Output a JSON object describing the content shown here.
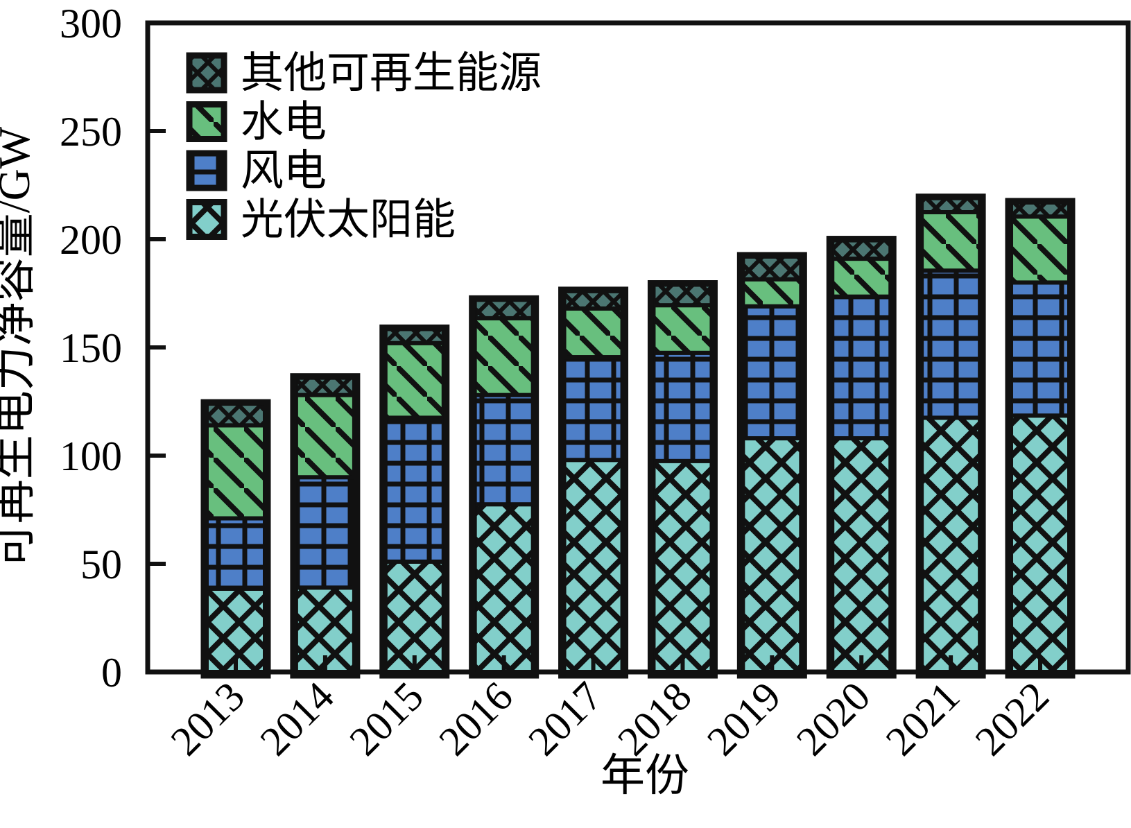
{
  "chart_data": {
    "type": "bar",
    "stacked": true,
    "title": "",
    "xlabel": "年份",
    "ylabel": "可再生电力净容量/GW",
    "categories": [
      "2013",
      "2014",
      "2015",
      "2016",
      "2017",
      "2018",
      "2019",
      "2020",
      "2021",
      "2022"
    ],
    "series": [
      {
        "name": "光伏太阳能",
        "color": "#82cfca",
        "pattern": "diagonal-crosshatch-large",
        "values": [
          38.5,
          39,
          51,
          77.5,
          98,
          97.5,
          108,
          108,
          117.5,
          118.5
        ]
      },
      {
        "name": "风电",
        "color": "#4e7fc8",
        "pattern": "grid",
        "values": [
          32.5,
          51,
          66.5,
          50.5,
          47.5,
          50,
          61,
          65.5,
          68,
          61.5
        ]
      },
      {
        "name": "水电",
        "color": "#68bf7e",
        "pattern": "diagonal-backslash",
        "values": [
          43,
          38,
          34.5,
          35.5,
          22.5,
          22,
          12.5,
          17.5,
          27,
          30.5
        ]
      },
      {
        "name": "其他可再生能源",
        "color": "#4b7672",
        "pattern": "diagonal-crosshatch-small",
        "values": [
          10,
          8,
          6.5,
          8.5,
          8,
          9.5,
          10.5,
          8.5,
          6.5,
          6.5
        ]
      }
    ],
    "ylim": [
      0,
      300
    ],
    "ytick_step": 50,
    "yticks": [
      "0",
      "50",
      "100",
      "150",
      "200",
      "250",
      "300"
    ],
    "grid": false,
    "legend_position": "upper-left-inside",
    "line_color": "#111111",
    "text_color": "#000000"
  }
}
